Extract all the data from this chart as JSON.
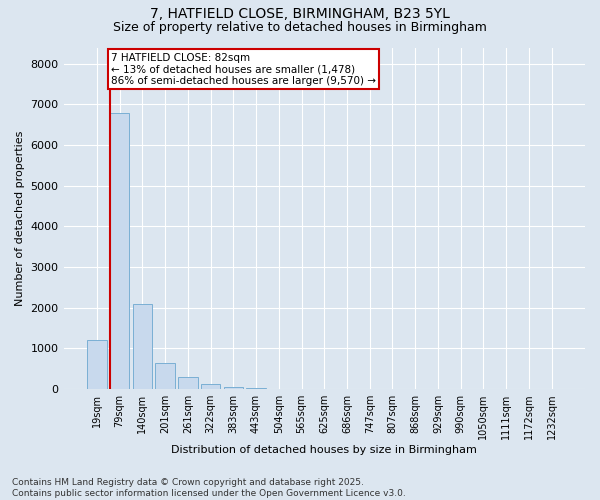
{
  "title_line1": "7, HATFIELD CLOSE, BIRMINGHAM, B23 5YL",
  "title_line2": "Size of property relative to detached houses in Birmingham",
  "xlabel": "Distribution of detached houses by size in Birmingham",
  "ylabel": "Number of detached properties",
  "categories": [
    "19sqm",
    "79sqm",
    "140sqm",
    "201sqm",
    "261sqm",
    "322sqm",
    "383sqm",
    "443sqm",
    "504sqm",
    "565sqm",
    "625sqm",
    "686sqm",
    "747sqm",
    "807sqm",
    "868sqm",
    "929sqm",
    "990sqm",
    "1050sqm",
    "1111sqm",
    "1172sqm",
    "1232sqm"
  ],
  "values": [
    1200,
    6800,
    2100,
    650,
    300,
    130,
    55,
    25,
    10,
    5,
    2,
    0,
    0,
    0,
    0,
    0,
    0,
    0,
    0,
    0,
    0
  ],
  "bar_color": "#c8d9ed",
  "bar_edge_color": "#7aafd4",
  "vline_color": "#cc0000",
  "annotation_text_line1": "7 HATFIELD CLOSE: 82sqm",
  "annotation_text_line2": "← 13% of detached houses are smaller (1,478)",
  "annotation_text_line3": "86% of semi-detached houses are larger (9,570) →",
  "annotation_box_color": "#cc0000",
  "annotation_fill_color": "#ffffff",
  "ylim": [
    0,
    8400
  ],
  "yticks": [
    0,
    1000,
    2000,
    3000,
    4000,
    5000,
    6000,
    7000,
    8000
  ],
  "background_color": "#dce6f0",
  "plot_bg_color": "#dce6f0",
  "footer_line1": "Contains HM Land Registry data © Crown copyright and database right 2025.",
  "footer_line2": "Contains public sector information licensed under the Open Government Licence v3.0.",
  "grid_color": "#ffffff",
  "title_fontsize": 10,
  "subtitle_fontsize": 9,
  "tick_fontsize": 7,
  "ylabel_fontsize": 8,
  "xlabel_fontsize": 8,
  "footer_fontsize": 6.5,
  "annotation_fontsize": 7.5,
  "bar_width": 0.85,
  "vline_bar_index": 1,
  "annotation_bar_index": 1
}
